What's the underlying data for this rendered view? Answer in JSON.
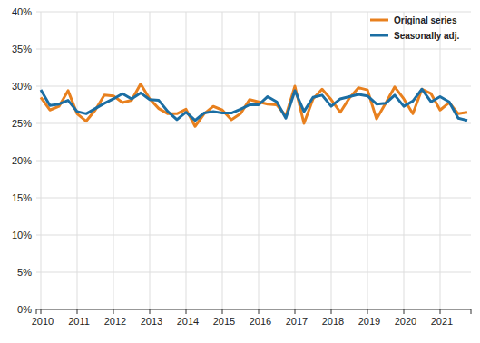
{
  "chart_data": {
    "type": "line",
    "categories": [
      "2010",
      null,
      null,
      null,
      "2011",
      null,
      null,
      null,
      "2012",
      null,
      null,
      null,
      "2013",
      null,
      null,
      null,
      "2014",
      null,
      null,
      null,
      "2015",
      null,
      null,
      null,
      "2016",
      null,
      null,
      null,
      "2017",
      null,
      null,
      null,
      "2018",
      null,
      null,
      null,
      "2019",
      null,
      null,
      null,
      "2020",
      null,
      null,
      null,
      "2021",
      null,
      null,
      null
    ],
    "series": [
      {
        "name": "Original series",
        "color": "#e8801e",
        "values": [
          28.5,
          26.8,
          27.3,
          29.4,
          26.3,
          25.3,
          26.8,
          28.8,
          28.7,
          27.8,
          28.1,
          30.3,
          28.3,
          27.0,
          26.3,
          26.3,
          26.9,
          24.6,
          26.3,
          27.3,
          26.8,
          25.5,
          26.3,
          28.2,
          27.9,
          27.6,
          27.5,
          26.0,
          30.0,
          25.0,
          28.3,
          29.6,
          28.2,
          26.5,
          28.4,
          29.8,
          29.5,
          25.6,
          27.7,
          29.9,
          28.3,
          26.3,
          29.6,
          29.0,
          26.8,
          27.8,
          26.3,
          26.5
        ]
      },
      {
        "name": "Seasonally adj.",
        "color": "#1b6ea3",
        "values": [
          29.5,
          27.4,
          27.6,
          28.1,
          26.6,
          26.3,
          27.0,
          27.7,
          28.3,
          29.0,
          28.3,
          29.1,
          28.2,
          28.1,
          26.6,
          25.5,
          26.5,
          25.4,
          26.4,
          26.6,
          26.4,
          26.4,
          26.9,
          27.5,
          27.5,
          28.6,
          27.9,
          25.7,
          29.4,
          26.6,
          28.5,
          28.8,
          27.3,
          28.3,
          28.6,
          28.9,
          28.7,
          27.6,
          27.7,
          28.8,
          27.3,
          28.0,
          29.6,
          27.9,
          28.6,
          27.9,
          25.7,
          25.4
        ]
      }
    ],
    "ylim": [
      0,
      40
    ],
    "yticks": [
      {
        "value": 0,
        "label": "0%"
      },
      {
        "value": 5,
        "label": "5%"
      },
      {
        "value": 10,
        "label": "10%"
      },
      {
        "value": 15,
        "label": "15%"
      },
      {
        "value": 20,
        "label": "20%"
      },
      {
        "value": 25,
        "label": "25%"
      },
      {
        "value": 30,
        "label": "30%"
      },
      {
        "value": 35,
        "label": "35%"
      },
      {
        "value": 40,
        "label": "40%"
      }
    ],
    "grid": true,
    "legend": "top-right"
  }
}
